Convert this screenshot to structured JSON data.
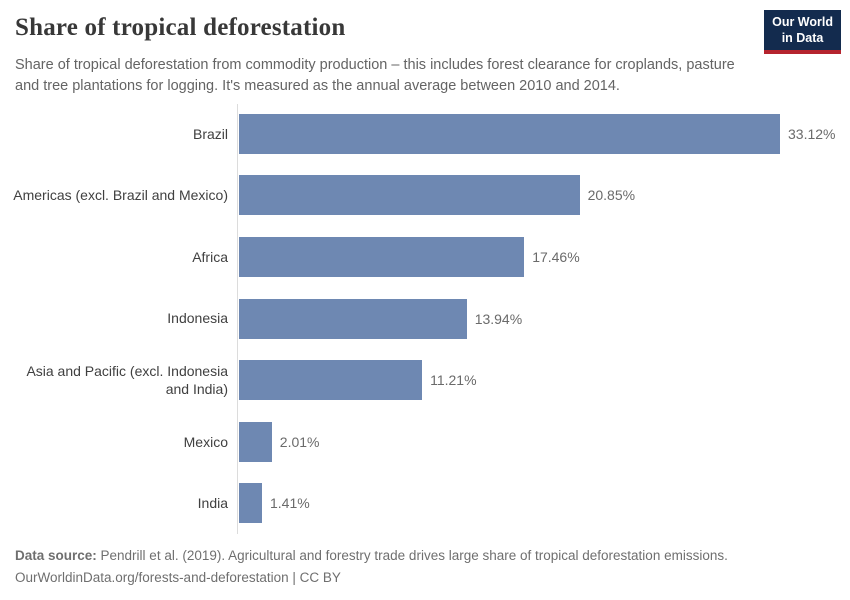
{
  "header": {
    "title": "Share of tropical deforestation",
    "logo": {
      "line1": "Our World",
      "line2": "in Data"
    }
  },
  "subtitle": "Share of tropical deforestation from commodity production – this includes forest clearance for croplands, pasture and tree plantations for logging. It's measured as the annual average between 2010 and 2014.",
  "chart_data": {
    "type": "bar",
    "orientation": "horizontal",
    "title": "Share of tropical deforestation",
    "categories": [
      "Brazil",
      "Americas (excl. Brazil and Mexico)",
      "Africa",
      "Indonesia",
      "Asia and Pacific (excl. Indonesia and India)",
      "Mexico",
      "India"
    ],
    "values": [
      33.12,
      20.85,
      17.46,
      13.94,
      11.21,
      2.01,
      1.41
    ],
    "value_labels": [
      "33.12%",
      "20.85%",
      "17.46%",
      "13.94%",
      "11.21%",
      "2.01%",
      "1.41%"
    ],
    "xlim": [
      0,
      33.12
    ],
    "grid": false,
    "legend": false,
    "bar_color": "#6e88b2",
    "axis_color": "#dcdcdc"
  },
  "footer": {
    "source_label": "Data source:",
    "source_text": " Pendrill et al. (2019). Agricultural and forestry trade drives large share of tropical deforestation emissions.",
    "link_line": "OurWorldinData.org/forests-and-deforestation | CC BY"
  }
}
